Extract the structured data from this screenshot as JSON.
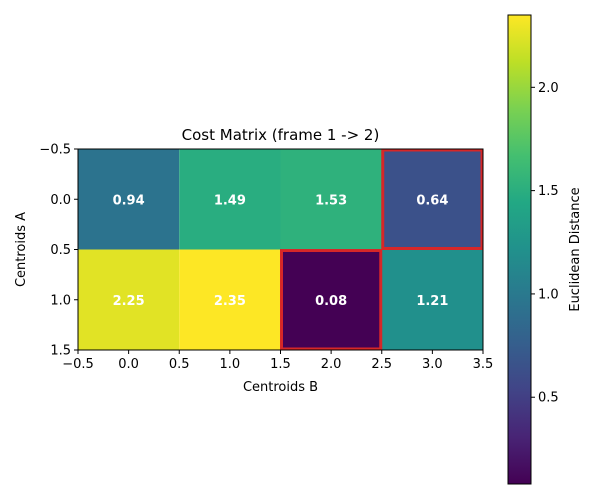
{
  "chart_data": {
    "type": "heatmap",
    "title": "Cost Matrix (frame 1 -> 2)",
    "xlabel": "Centroids B",
    "ylabel": "Centroids A",
    "rows": 2,
    "cols": 4,
    "values": [
      [
        0.94,
        1.49,
        1.53,
        0.64
      ],
      [
        2.25,
        2.35,
        0.08,
        1.21
      ]
    ],
    "cell_labels": [
      [
        "0.94",
        "1.49",
        "1.53",
        "0.64"
      ],
      [
        "2.25",
        "2.35",
        "0.08",
        "1.21"
      ]
    ],
    "highlighted_cells": [
      [
        0,
        3
      ],
      [
        1,
        2
      ]
    ],
    "highlight_color": "#d62728",
    "xlim": [
      -0.5,
      3.5
    ],
    "ylim": [
      1.5,
      -0.5
    ],
    "x_ticks": [
      -0.5,
      0.0,
      0.5,
      1.0,
      1.5,
      2.0,
      2.5,
      3.0,
      3.5
    ],
    "x_tick_labels": [
      "−0.5",
      "0.0",
      "0.5",
      "1.0",
      "1.5",
      "2.0",
      "2.5",
      "3.0",
      "3.5"
    ],
    "y_ticks": [
      -0.5,
      0.0,
      0.5,
      1.0,
      1.5
    ],
    "y_tick_labels": [
      "−0.5",
      "0.0",
      "0.5",
      "1.0",
      "1.5"
    ],
    "colorbar": {
      "label": "Euclidean Distance",
      "colormap": "viridis",
      "vmin": 0.08,
      "vmax": 2.35,
      "ticks": [
        0.5,
        1.0,
        1.5,
        2.0
      ],
      "tick_labels": [
        "0.5",
        "1.0",
        "1.5",
        "2.0"
      ]
    }
  }
}
